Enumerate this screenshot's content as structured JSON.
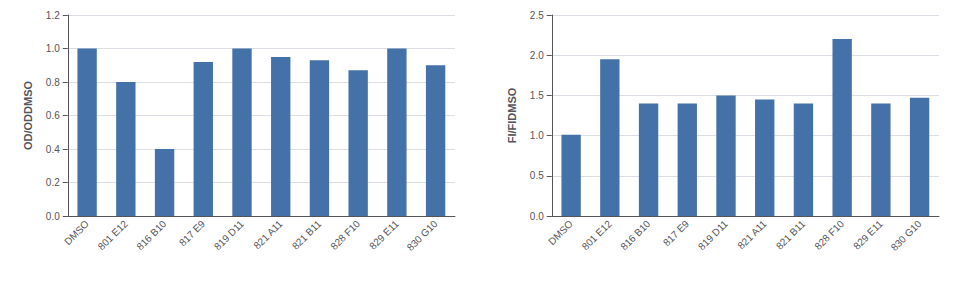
{
  "chart_data": [
    {
      "type": "bar",
      "categories": [
        "DMSO",
        "801 E12",
        "816 B10",
        "817 E9",
        "819 D11",
        "821 A11",
        "821 B11",
        "828 F10",
        "829 E11",
        "830 G10"
      ],
      "values": [
        1.0,
        0.8,
        0.4,
        0.92,
        1.0,
        0.95,
        0.93,
        0.87,
        1.0,
        0.9
      ],
      "color": "#4472a8",
      "ylabel": "OD/ODDMSO",
      "ylim": [
        0,
        1.2
      ],
      "yticks": [
        {
          "value": 0,
          "label": "0.0"
        },
        0.2,
        0.4,
        0.6,
        0.8,
        {
          "value": 1.0,
          "label": "1.0"
        },
        1.2
      ],
      "grid": true
    },
    {
      "type": "bar",
      "categories": [
        "DMSO",
        "801 E12",
        "816 B10",
        "817 E9",
        "819 D11",
        "821 A11",
        "821 B11",
        "828 F10",
        "829 E11",
        "830 G10"
      ],
      "values": [
        1.01,
        1.95,
        1.4,
        1.4,
        1.5,
        1.45,
        1.4,
        2.2,
        1.4,
        1.47
      ],
      "color": "#4472a8",
      "ylabel": "FI/FIDMSO",
      "ylim": [
        0,
        2.5
      ],
      "yticks": [
        {
          "value": 0,
          "label": "0.0"
        },
        0.5,
        {
          "value": 1.0,
          "label": "1.0"
        },
        1.5,
        {
          "value": 2.0,
          "label": "2.0"
        },
        2.5
      ],
      "grid": true
    }
  ]
}
